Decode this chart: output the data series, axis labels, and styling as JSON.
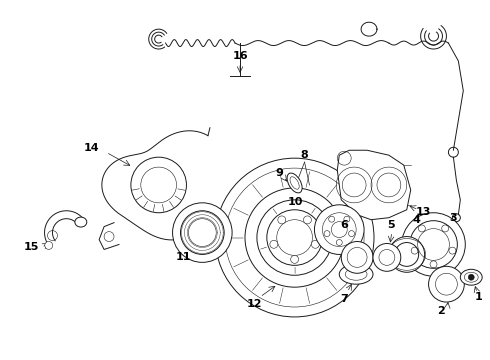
{
  "background_color": "#ffffff",
  "line_color": "#1a1a1a",
  "figsize": [
    4.9,
    3.6
  ],
  "dpi": 100,
  "lw": 0.7,
  "thin": 0.4
}
